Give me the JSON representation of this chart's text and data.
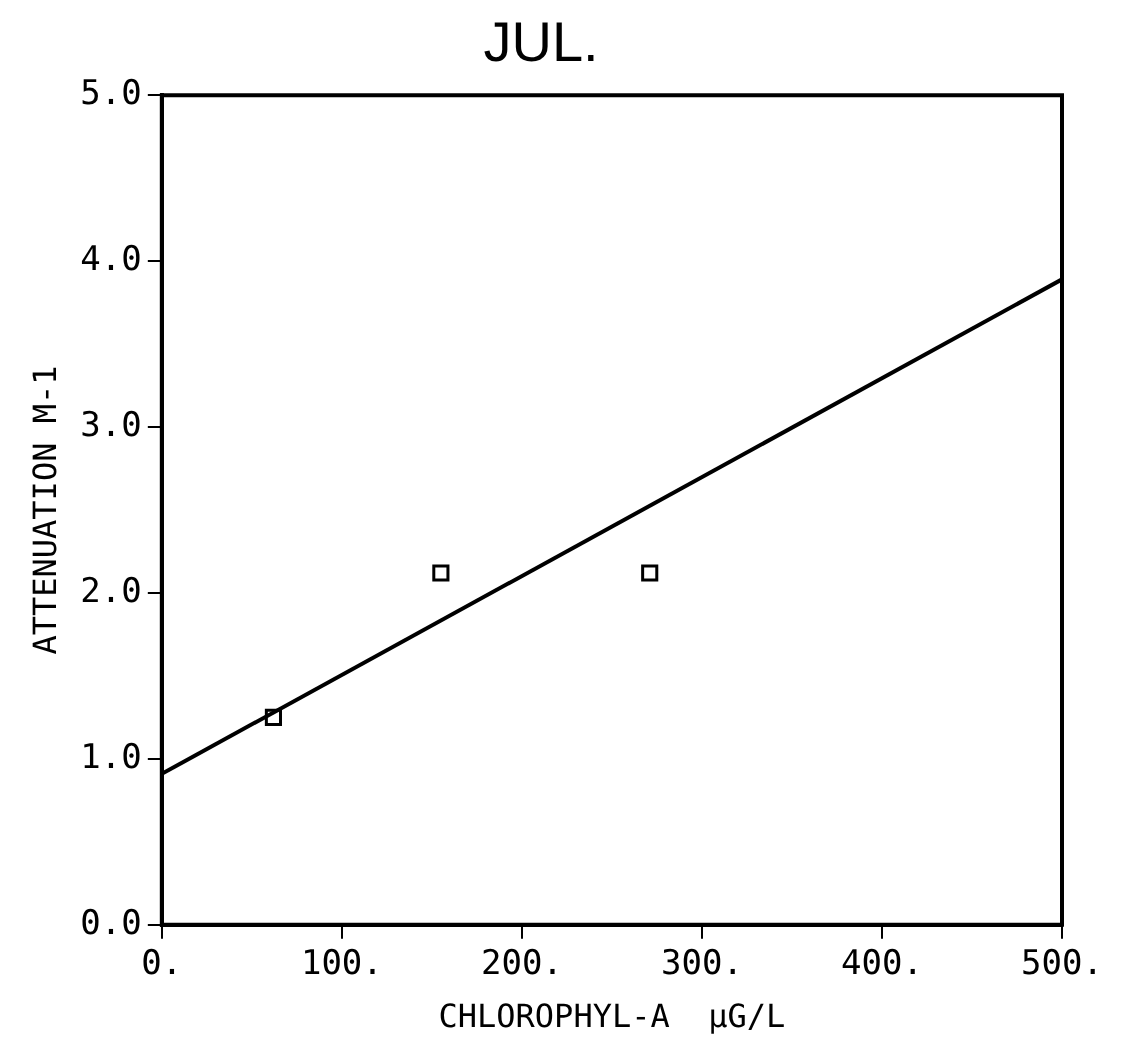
{
  "chart_data": {
    "type": "scatter",
    "title": "JUL.",
    "xlabel": "CHLOROPHYL-A  µG/L",
    "ylabel": "ATTENUATION M-1",
    "xlim": [
      0,
      500
    ],
    "ylim": [
      0,
      5
    ],
    "xticks": [
      {
        "value": 0,
        "label": "0."
      },
      {
        "value": 100,
        "label": "100."
      },
      {
        "value": 200,
        "label": "200."
      },
      {
        "value": 300,
        "label": "300."
      },
      {
        "value": 400,
        "label": "400."
      },
      {
        "value": 500,
        "label": "500."
      }
    ],
    "yticks": [
      {
        "value": 0,
        "label": "0.0"
      },
      {
        "value": 1,
        "label": "1.0"
      },
      {
        "value": 2,
        "label": "2.0"
      },
      {
        "value": 3,
        "label": "3.0"
      },
      {
        "value": 4,
        "label": "4.0"
      },
      {
        "value": 5,
        "label": "5.0"
      }
    ],
    "grid": false,
    "legend": false,
    "marker": "square",
    "series": [
      {
        "color": "#000000",
        "x": [
          62,
          155,
          271
        ],
        "values": [
          1.25,
          2.12,
          2.12
        ]
      },
      {
        "type": "line",
        "color": "#000000",
        "x": [
          0,
          500
        ],
        "values": [
          0.91,
          3.89
        ],
        "marker": "none",
        "line_style": "solid"
      }
    ]
  }
}
